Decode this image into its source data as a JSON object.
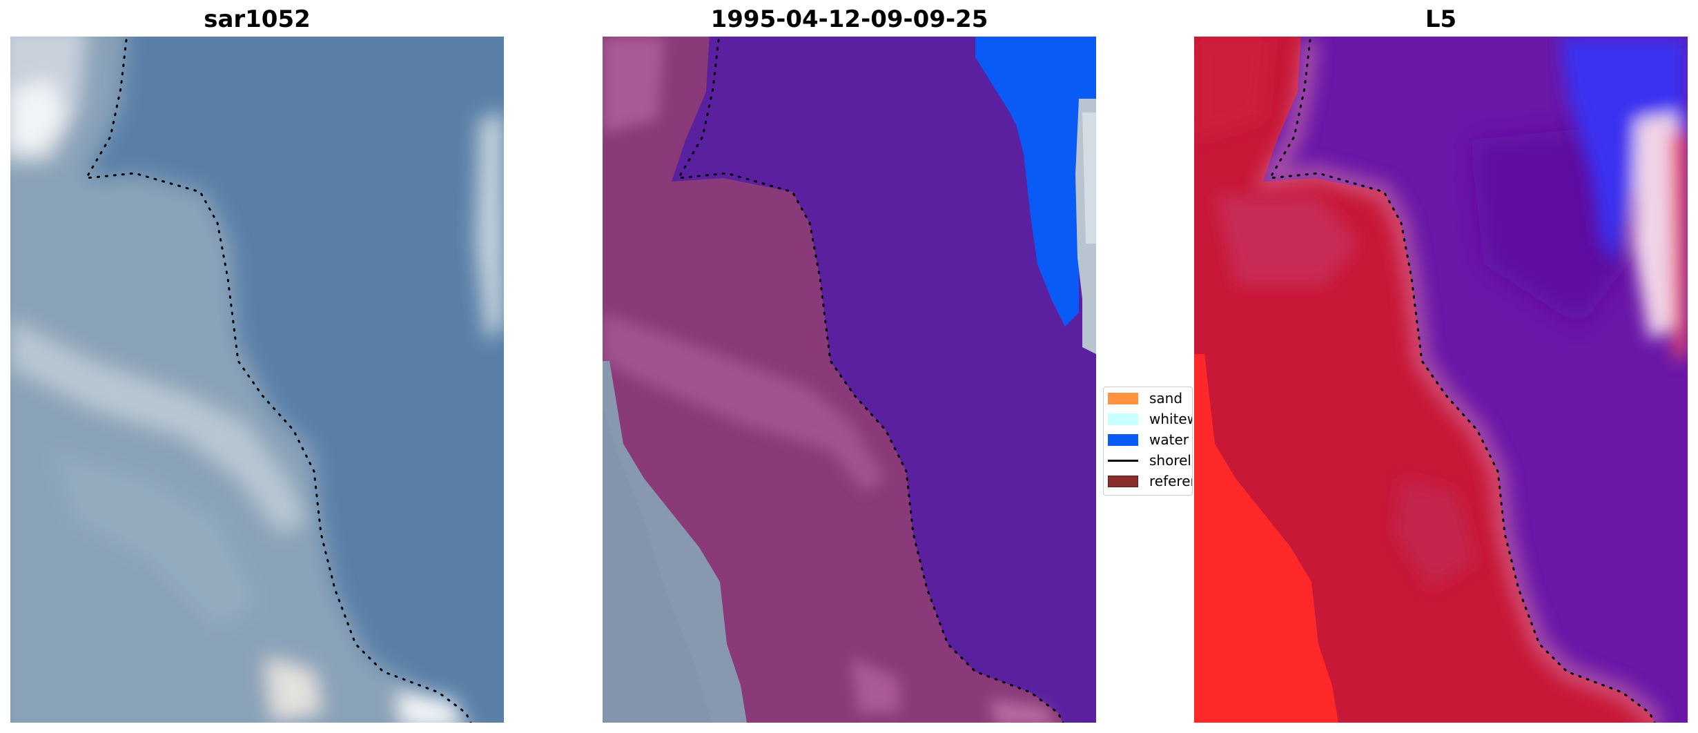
{
  "panels": [
    {
      "title": "sar1052"
    },
    {
      "title": "1995-04-12-09-09-25"
    },
    {
      "title": "L5"
    }
  ],
  "legend": {
    "items": [
      {
        "label": "sand",
        "color": "#ff9340"
      },
      {
        "label": "whitewater",
        "color": "#c8ffff"
      },
      {
        "label": "water",
        "color": "#0a5af5"
      },
      {
        "label": "shoreline",
        "color": "#000000"
      },
      {
        "label": "reference",
        "color": "#8b2d2d"
      }
    ]
  },
  "colors": {
    "sea_blue": "#5a80a8",
    "land_pale": "#9fb4c4",
    "water_class": "#5a20a0",
    "land_class": "#8a3a78",
    "classified_water": "#0a5af5",
    "l5_land": "#c81838",
    "l5_water": "#6a18a8",
    "l5_bright_red": "#ff2828"
  }
}
